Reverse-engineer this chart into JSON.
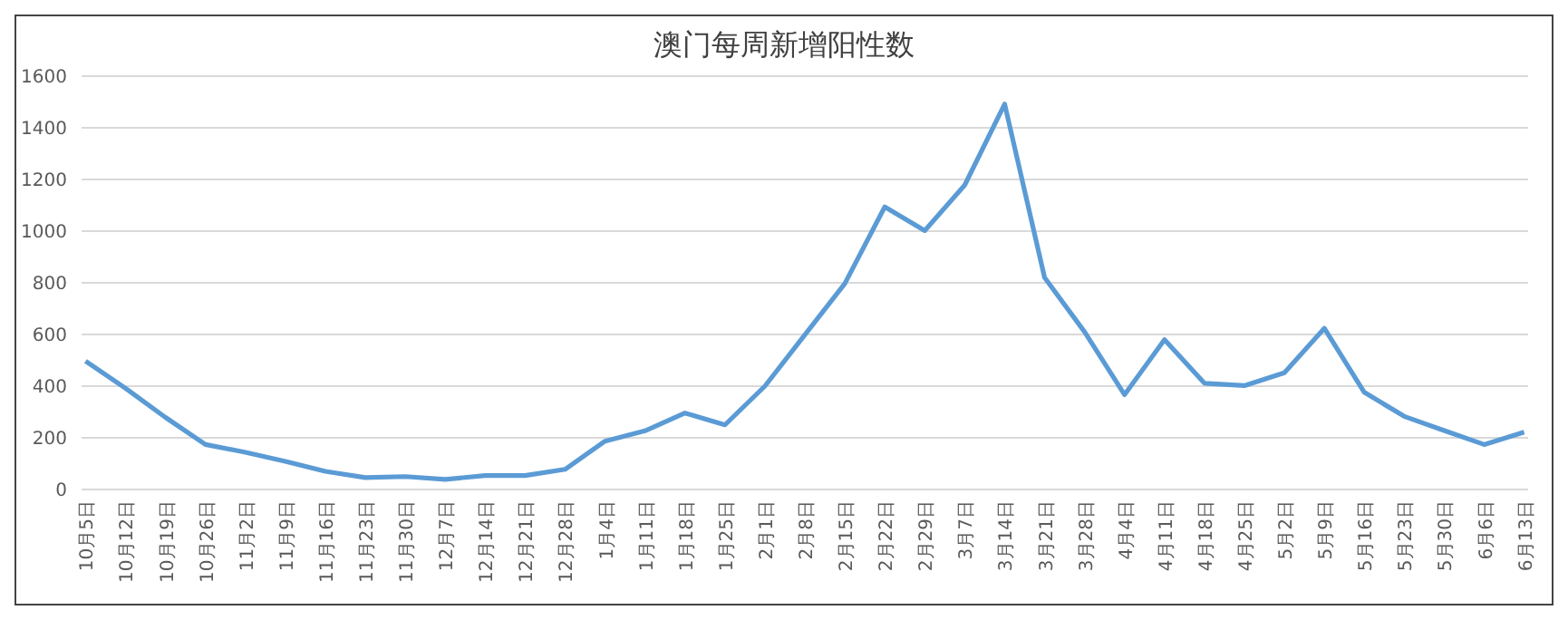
{
  "chart_data": {
    "type": "line",
    "title": "澳门每周新增阳性数",
    "categories": [
      "10月5日",
      "10月12日",
      "10月19日",
      "10月26日",
      "11月2日",
      "11月9日",
      "11月16日",
      "11月23日",
      "11月30日",
      "12月7日",
      "12月14日",
      "12月21日",
      "12月28日",
      "1月4日",
      "1月11日",
      "1月18日",
      "1月25日",
      "2月1日",
      "2月8日",
      "2月15日",
      "2月22日",
      "2月29日",
      "3月7日",
      "3月14日",
      "3月21日",
      "3月28日",
      "4月4日",
      "4月11日",
      "4月18日",
      "4月25日",
      "5月2日",
      "5月9日",
      "5月16日",
      "5月23日",
      "5月30日",
      "6月6日",
      "6月13日"
    ],
    "series": [
      {
        "color": "#5b9bd5",
        "values": [
          497,
          392,
          279,
          174,
          144,
          109,
          70,
          46,
          50,
          39,
          54,
          54,
          78,
          187,
          227,
          296,
          250,
          400,
          599,
          797,
          1094,
          1002,
          1178,
          1492,
          820,
          610,
          367,
          580,
          411,
          402,
          452,
          624,
          376,
          283,
          228,
          174,
          222
        ]
      }
    ],
    "ylim": [
      0,
      1600
    ],
    "yticks": [
      0,
      200,
      400,
      600,
      800,
      1000,
      1200,
      1400,
      1600
    ],
    "grid": "y",
    "marker": "none",
    "line_style": "solid"
  }
}
